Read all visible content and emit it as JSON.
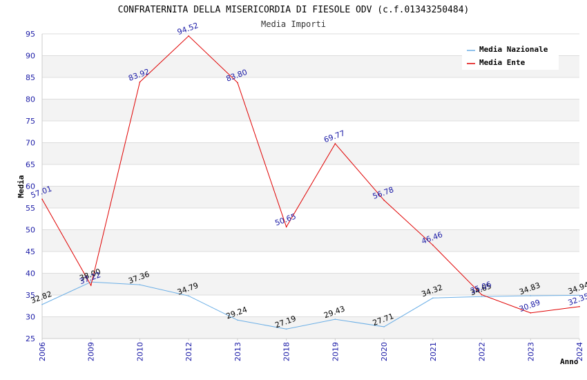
{
  "chart_data": {
    "type": "line",
    "title": "CONFRATERNITA DELLA MISERICORDIA DI FIESOLE ODV (c.f.01343250484)",
    "subtitle": "Media Importi",
    "xlabel": "Anno",
    "ylabel": "Media",
    "categories": [
      "2006",
      "2009",
      "2010",
      "2012",
      "2013",
      "2018",
      "2019",
      "2020",
      "2021",
      "2022",
      "2023",
      "2024"
    ],
    "ylim": [
      25,
      95
    ],
    "yticks": [
      25,
      30,
      35,
      40,
      45,
      50,
      55,
      60,
      65,
      70,
      75,
      80,
      85,
      90,
      95
    ],
    "grid": true,
    "legend_position": "top-right",
    "series": [
      {
        "name": "Media Nazionale",
        "color": "#6aaee6",
        "label_color": "#000000",
        "values": [
          32.82,
          38.0,
          37.36,
          34.79,
          29.24,
          27.19,
          29.43,
          27.71,
          34.32,
          34.65,
          34.83,
          34.94
        ],
        "labels": [
          "32.82",
          "38.00",
          "37.36",
          "34.79",
          "29.24",
          "27.19",
          "29.43",
          "27.71",
          "34.32",
          "34.65",
          "34.83",
          "34.94"
        ]
      },
      {
        "name": "Media Ente",
        "color": "#e00000",
        "label_color": "#1a1aa6",
        "values": [
          57.01,
          37.22,
          83.92,
          94.52,
          83.8,
          50.65,
          69.77,
          56.78,
          46.46,
          35.06,
          30.89,
          32.35
        ],
        "labels": [
          "57.01",
          "37.22",
          "83.92",
          "94.52",
          "83.80",
          "50.65",
          "69.77",
          "56.78",
          "46.46",
          "35.06",
          "30.89",
          "32.35"
        ]
      }
    ]
  }
}
